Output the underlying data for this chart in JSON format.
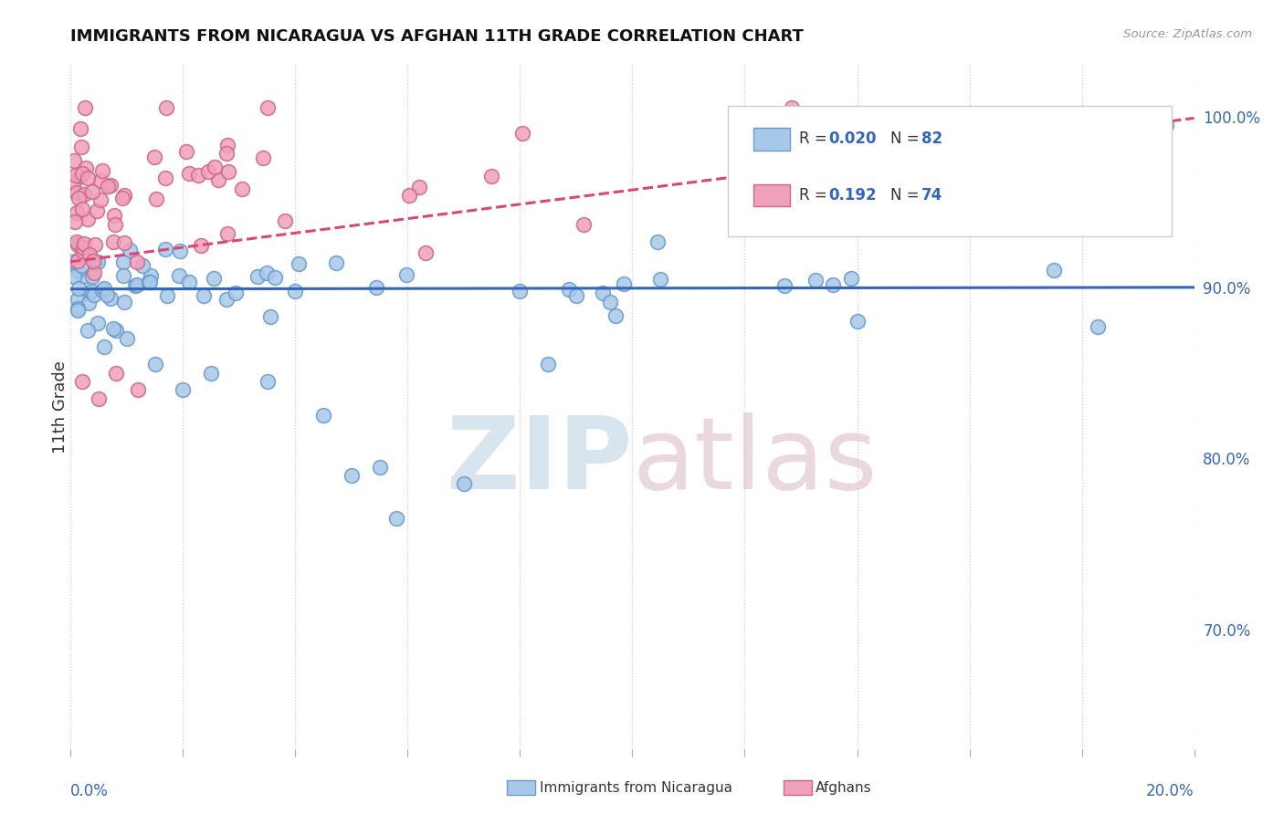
{
  "title": "IMMIGRANTS FROM NICARAGUA VS AFGHAN 11TH GRADE CORRELATION CHART",
  "source_text": "Source: ZipAtlas.com",
  "ylabel": "11th Grade",
  "xlim": [
    0.0,
    20.0
  ],
  "ylim": [
    63.0,
    103.0
  ],
  "yticks": [
    70.0,
    80.0,
    90.0,
    100.0
  ],
  "ytick_labels": [
    "70.0%",
    "80.0%",
    "90.0%",
    "100.0%"
  ],
  "background_color": "#ffffff",
  "blue_scatter_color": "#a8c8e8",
  "blue_scatter_edge": "#6699cc",
  "pink_scatter_color": "#f0a0b8",
  "pink_scatter_edge": "#cc6688",
  "blue_line_color": "#3366bb",
  "pink_line_color": "#dd4477",
  "blue_line_intercept": 89.9,
  "blue_line_slope": 0.005,
  "pink_line_intercept": 91.5,
  "pink_line_slope": 0.42,
  "scatter_size": 130,
  "blue_R": "0.020",
  "blue_N": "82",
  "pink_R": "0.192",
  "pink_N": "74",
  "legend_label_blue": "Immigrants from Nicaragua",
  "legend_label_pink": "Afghans",
  "R_N_color": "#3366bb",
  "title_color": "#111111",
  "source_color": "#999999",
  "ylabel_color": "#333333",
  "xtick_label_color": "#3366bb",
  "ytick_label_color": "#3366bb",
  "grid_color": "#cccccc",
  "watermark_zip_color": "#b8cfe0",
  "watermark_atlas_color": "#d8b8c0"
}
